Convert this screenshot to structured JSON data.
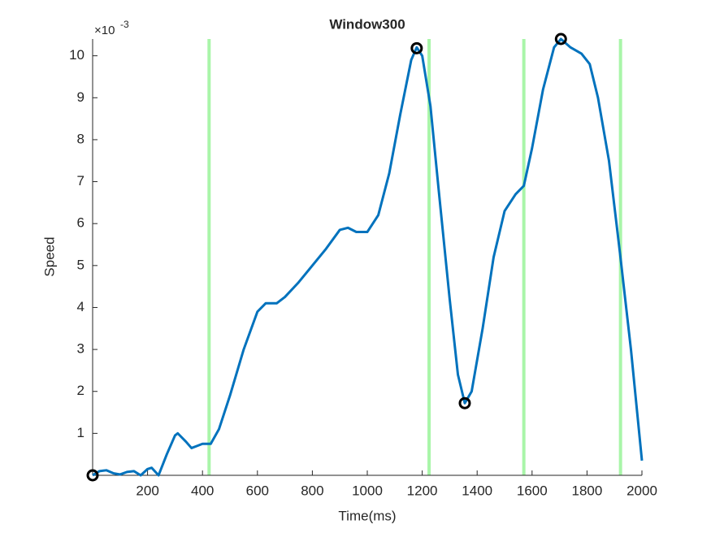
{
  "chart_data": {
    "type": "line",
    "title": "Window300",
    "xlabel": "Time(ms)",
    "ylabel": "Speed",
    "y_multiplier": {
      "base": "×10",
      "exponent": "-3"
    },
    "xlim": [
      0,
      2000
    ],
    "xticks": [
      200,
      400,
      600,
      800,
      1000,
      1200,
      1400,
      1600,
      1800,
      2000
    ],
    "ylim": [
      0,
      10.4
    ],
    "yticks": [
      1,
      2,
      3,
      4,
      5,
      6,
      7,
      8,
      9,
      10
    ],
    "color": "#0072bd",
    "x": [
      0,
      25,
      50,
      75,
      100,
      125,
      150,
      175,
      200,
      215,
      240,
      270,
      300,
      310,
      340,
      360,
      380,
      400,
      430,
      460,
      500,
      550,
      600,
      630,
      670,
      700,
      750,
      800,
      850,
      900,
      930,
      960,
      1000,
      1040,
      1080,
      1120,
      1160,
      1180,
      1200,
      1230,
      1260,
      1300,
      1330,
      1355,
      1380,
      1420,
      1460,
      1500,
      1540,
      1570,
      1600,
      1640,
      1680,
      1705,
      1740,
      1780,
      1810,
      1840,
      1880,
      1920,
      1960,
      2000
    ],
    "values": [
      0,
      0.1,
      0.12,
      0.05,
      0.02,
      0.08,
      0.1,
      0.0,
      0.15,
      0.18,
      0.0,
      0.5,
      0.95,
      1.0,
      0.8,
      0.65,
      0.7,
      0.75,
      0.75,
      1.1,
      1.9,
      3.0,
      3.9,
      4.1,
      4.1,
      4.25,
      4.6,
      5.0,
      5.4,
      5.85,
      5.9,
      5.8,
      5.8,
      6.2,
      7.2,
      8.6,
      9.9,
      10.2,
      10.0,
      8.8,
      6.8,
      4.2,
      2.4,
      1.72,
      2.0,
      3.5,
      5.2,
      6.3,
      6.7,
      6.9,
      7.8,
      9.2,
      10.2,
      10.4,
      10.2,
      10.05,
      9.8,
      9.0,
      7.5,
      5.3,
      3.0,
      0.35
    ],
    "vlines": {
      "color": "#a9f5a9",
      "x": [
        424,
        1225,
        1570,
        1922
      ]
    },
    "peaks": {
      "color": "#000000",
      "x": [
        0,
        1180,
        1355,
        1705
      ],
      "values": [
        0,
        10.18,
        1.72,
        10.4
      ]
    }
  }
}
